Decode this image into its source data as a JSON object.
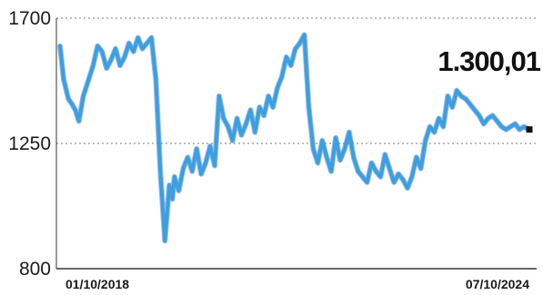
{
  "chart_data": {
    "type": "line",
    "title": "",
    "xlabel": "",
    "ylabel": "",
    "ylim": [
      800,
      1700
    ],
    "yticks": [
      800,
      1250,
      1700
    ],
    "ytick_labels": [
      "800",
      "1250",
      "1700"
    ],
    "x_start_label": "01/10/2018",
    "x_end_label": "07/10/2024",
    "last_value_label": "1.300,01",
    "grid": "dotted horizontal",
    "line_color": "#3aa0e0",
    "line_color_dark": "#2a66c0",
    "series": [
      {
        "x": [
          "2018-10-01",
          "2018-10-18",
          "2018-11-09",
          "2018-11-27",
          "2018-12-12",
          "2018-12-28",
          "2019-01-18",
          "2019-02-12",
          "2019-03-05",
          "2019-03-26",
          "2019-04-16",
          "2019-05-07",
          "2019-05-28",
          "2019-06-18",
          "2019-07-09",
          "2019-07-30",
          "2019-08-20",
          "2019-09-10",
          "2019-10-01",
          "2019-10-22",
          "2019-11-12",
          "2019-12-03",
          "2019-12-24",
          "2020-01-14",
          "2020-02-04",
          "2020-02-25",
          "2020-03-10",
          "2020-03-20",
          "2020-04-09",
          "2020-04-30",
          "2020-05-21",
          "2020-06-11",
          "2020-07-02",
          "2020-07-23",
          "2020-08-13",
          "2020-09-03",
          "2020-09-24",
          "2020-10-15",
          "2020-11-05",
          "2020-11-26",
          "2020-12-17",
          "2021-01-07",
          "2021-01-28",
          "2021-02-18",
          "2021-03-11",
          "2021-04-01",
          "2021-04-22",
          "2021-05-13",
          "2021-06-03",
          "2021-06-24",
          "2021-07-15",
          "2021-08-05",
          "2021-08-26",
          "2021-09-16",
          "2021-10-07",
          "2021-10-28",
          "2021-11-18",
          "2021-12-09",
          "2021-12-30",
          "2022-01-20",
          "2022-02-10",
          "2022-03-03",
          "2022-03-24",
          "2022-04-14",
          "2022-05-05",
          "2022-05-26",
          "2022-06-16",
          "2022-07-07",
          "2022-07-28",
          "2022-08-18",
          "2022-09-08",
          "2022-09-29",
          "2022-10-20",
          "2022-11-10",
          "2022-12-01",
          "2022-12-22",
          "2023-01-12",
          "2023-02-02",
          "2023-02-23",
          "2023-03-16",
          "2023-04-06",
          "2023-04-27",
          "2023-05-18",
          "2023-06-08",
          "2023-06-29",
          "2023-07-20",
          "2023-08-10",
          "2023-08-31",
          "2023-09-21",
          "2023-10-12",
          "2023-11-02",
          "2023-11-23",
          "2023-12-14",
          "2024-01-04",
          "2024-01-25",
          "2024-02-15",
          "2024-03-07",
          "2024-03-28",
          "2024-04-18",
          "2024-05-09",
          "2024-05-30",
          "2024-06-20",
          "2024-07-11",
          "2024-08-01",
          "2024-08-22",
          "2024-09-12",
          "2024-10-07"
        ],
        "y": [
          1600,
          1480,
          1410,
          1390,
          1370,
          1330,
          1420,
          1480,
          1530,
          1600,
          1580,
          1520,
          1550,
          1590,
          1530,
          1560,
          1610,
          1580,
          1630,
          1590,
          1610,
          1630,
          1480,
          1150,
          900,
          1100,
          1050,
          1130,
          1080,
          1160,
          1200,
          1150,
          1230,
          1140,
          1180,
          1240,
          1170,
          1420,
          1340,
          1310,
          1260,
          1340,
          1280,
          1320,
          1370,
          1290,
          1380,
          1350,
          1420,
          1380,
          1450,
          1490,
          1560,
          1530,
          1590,
          1610,
          1640,
          1380,
          1230,
          1180,
          1260,
          1200,
          1150,
          1270,
          1190,
          1230,
          1290,
          1200,
          1150,
          1130,
          1110,
          1180,
          1150,
          1130,
          1210,
          1160,
          1110,
          1140,
          1120,
          1090,
          1130,
          1200,
          1160,
          1260,
          1310,
          1290,
          1340,
          1310,
          1420,
          1380,
          1440,
          1420,
          1410,
          1390,
          1370,
          1350,
          1320,
          1340,
          1350,
          1330,
          1310,
          1300,
          1310,
          1320,
          1300,
          1310,
          1300
        ]
      }
    ]
  }
}
